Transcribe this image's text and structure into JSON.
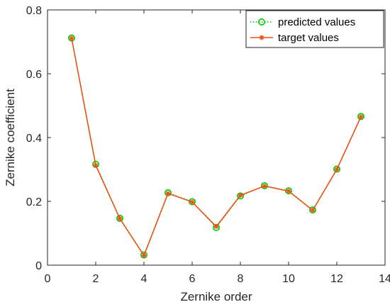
{
  "chart_data": {
    "type": "line",
    "title": "",
    "xlabel": "Zernike order",
    "ylabel": "Zernike coefficient",
    "xlim": [
      0,
      14
    ],
    "ylim": [
      0,
      0.8
    ],
    "xticks": [
      0,
      2,
      4,
      6,
      8,
      10,
      12,
      14
    ],
    "yticks": [
      0,
      0.2,
      0.4,
      0.6,
      0.8
    ],
    "xtick_labels": [
      "0",
      "2",
      "4",
      "6",
      "8",
      "10",
      "12",
      "14"
    ],
    "ytick_labels": [
      "0",
      "0.2",
      "0.4",
      "0.6",
      "0.8"
    ],
    "grid": false,
    "legend_position": "top-right",
    "x": [
      1,
      2,
      3,
      4,
      5,
      6,
      7,
      8,
      9,
      10,
      11,
      12,
      13
    ],
    "series": [
      {
        "name": "predicted values",
        "values": [
          0.712,
          0.316,
          0.147,
          0.032,
          0.227,
          0.199,
          0.118,
          0.217,
          0.249,
          0.233,
          0.173,
          0.301,
          0.466
        ],
        "color": "#00cc00",
        "line_style": "dotted",
        "marker": "circle"
      },
      {
        "name": "target values",
        "values": [
          0.711,
          0.313,
          0.146,
          0.03,
          0.225,
          0.198,
          0.121,
          0.219,
          0.248,
          0.232,
          0.172,
          0.3,
          0.465
        ],
        "color": "#e8541a",
        "line_style": "solid",
        "marker": "asterisk"
      }
    ]
  }
}
